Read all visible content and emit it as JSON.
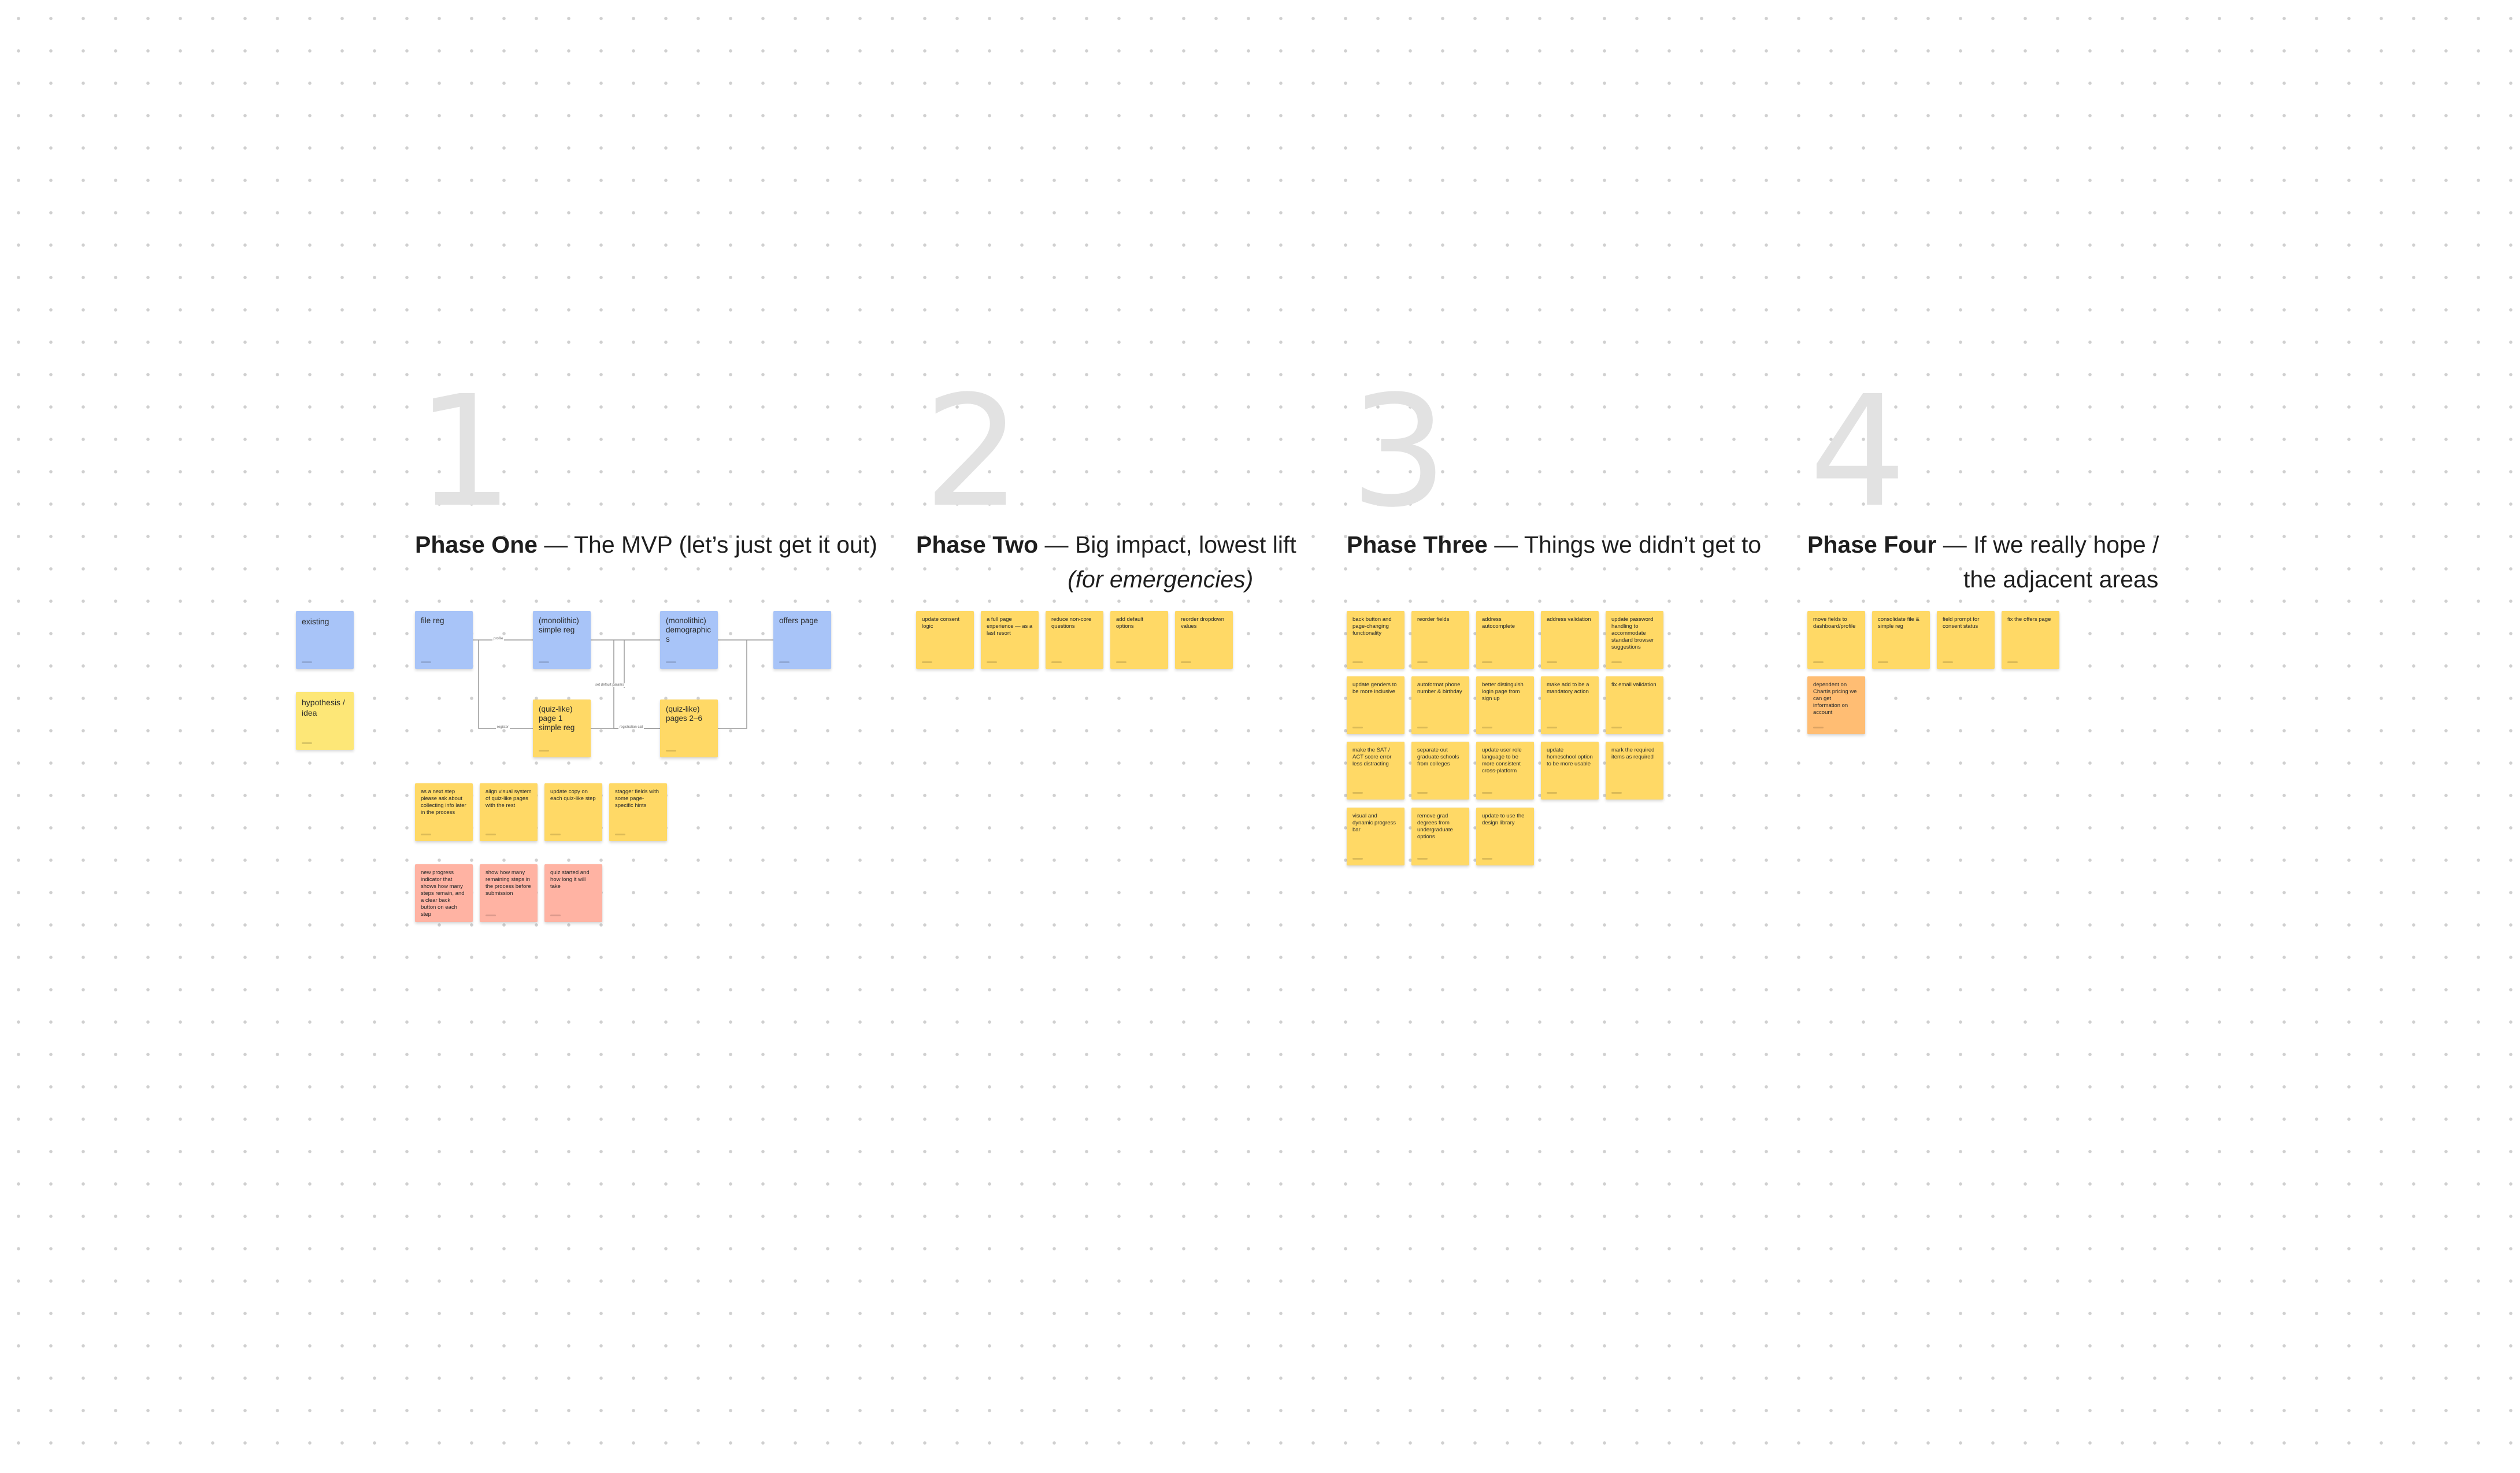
{
  "phases": [
    {
      "digit": "1",
      "title": "Phase One",
      "rest": "— The MVP (let’s just get it out)",
      "sub": ""
    },
    {
      "digit": "2",
      "title": "Phase Two",
      "rest": "— Big impact, lowest lift",
      "sub": "(for emergencies)"
    },
    {
      "digit": "3",
      "title": "Phase Three",
      "rest": "— Things we didn’t get to",
      "sub": ""
    },
    {
      "digit": "4",
      "title": "Phase Four",
      "rest": "— If we really hope /",
      "sub": "the adjacent areas"
    }
  ],
  "legend": [
    {
      "text": "existing",
      "color": "blue"
    },
    {
      "text": "hypothesis / idea",
      "color": "lightyellow"
    }
  ],
  "phase1_flow": [
    {
      "text": "file reg",
      "color": "blue"
    },
    {
      "text": "(monolithic) simple reg",
      "color": "blue"
    },
    {
      "text": "(monolithic) demographics",
      "color": "blue"
    },
    {
      "text": "offers page",
      "color": "blue"
    },
    {
      "text": "(quiz-like) page 1 simple reg",
      "color": "yellow"
    },
    {
      "text": "(quiz-like) pages 2–6",
      "color": "yellow"
    }
  ],
  "phase1_ideas": [
    "as a next step please ask about collecting info later in the process",
    "align visual system of quiz-like pages with the rest",
    "update copy on each quiz-like step",
    "stagger fields with some page-specific hints"
  ],
  "phase1_notes": [
    "new progress indicator that shows how many steps remain, and a clear back button on each step",
    "show how many remaining steps in the process before submission",
    "quiz started and how long it will take"
  ],
  "phase2": [
    "update consent logic",
    "a full page experience — as a last resort",
    "reduce non-core questions",
    "add default options",
    "reorder dropdown values"
  ],
  "phase3": [
    "back button and page-changing functionality",
    "reorder fields",
    "address autocomplete",
    "address validation",
    "update password handling to accommodate standard browser suggestions",
    "update genders to be more inclusive",
    "autoformat phone number & birthday",
    "better distinguish login page from sign up",
    "make add to be a mandatory action",
    "fix email validation",
    "make the SAT / ACT score error less distracting",
    "separate out graduate schools from colleges",
    "update user role language to be more consistent cross-platform",
    "update homeschool option to be more usable",
    "mark the required items as required",
    "visual and dynamic progress bar",
    "remove grad degrees from undergraduate options",
    "update to use the design library"
  ],
  "phase4": [
    {
      "text": "move fields to dashboard/profile",
      "color": "yellow"
    },
    {
      "text": "consolidate file & simple reg",
      "color": "yellow"
    },
    {
      "text": "field prompt for consent status",
      "color": "yellow"
    },
    {
      "text": "fix the offers page",
      "color": "yellow"
    },
    {
      "text": "dependent on Chartis pricing we can get information on account",
      "color": "orange"
    }
  ],
  "connector_labels": [
    "profile",
    "register",
    "set default params",
    "registration call"
  ],
  "colors": {
    "yellow": "#ffd966",
    "light_yellow": "#fde777",
    "blue": "#a8c4f8",
    "pink": "#ffb3a3",
    "orange": "#ffbd73",
    "phase_digit": "#e2e2e2",
    "dot_grid": "#d0d0d0"
  }
}
